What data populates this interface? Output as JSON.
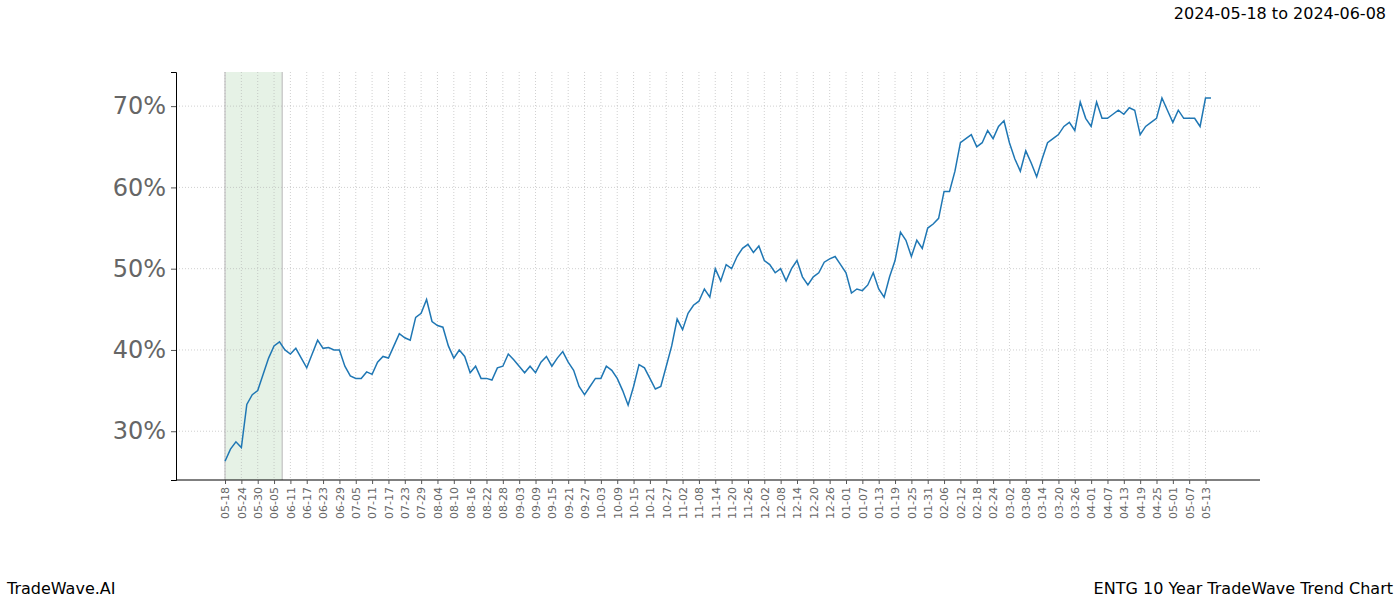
{
  "chart_data": {
    "type": "line",
    "title": "ENTG 10 Year TradeWave Trend Chart",
    "subtitle": "2024-05-18 to 2024-06-08",
    "annotations": [
      "TradeWave.AI"
    ],
    "categories": [
      "05-18",
      null,
      null,
      "05-24",
      null,
      null,
      "05-30",
      null,
      null,
      "06-05",
      null,
      null,
      "06-11",
      null,
      null,
      "06-17",
      null,
      null,
      "06-23",
      null,
      null,
      "06-29",
      null,
      null,
      "07-05",
      null,
      null,
      "07-11",
      null,
      null,
      "07-17",
      null,
      null,
      "07-23",
      null,
      null,
      "07-29",
      null,
      null,
      "08-04",
      null,
      null,
      "08-10",
      null,
      null,
      "08-16",
      null,
      null,
      "08-22",
      null,
      null,
      "08-28",
      null,
      null,
      "09-03",
      null,
      null,
      "09-09",
      null,
      null,
      "09-15",
      null,
      null,
      "09-21",
      null,
      null,
      "09-27",
      null,
      null,
      "10-03",
      null,
      null,
      "10-09",
      null,
      null,
      "10-15",
      null,
      null,
      "10-21",
      null,
      null,
      "10-27",
      null,
      null,
      "11-02",
      null,
      null,
      "11-08",
      null,
      null,
      "11-14",
      null,
      null,
      "11-20",
      null,
      null,
      "11-26",
      null,
      null,
      "12-02",
      null,
      null,
      "12-08",
      null,
      null,
      "12-14",
      null,
      null,
      "12-20",
      null,
      null,
      "12-26",
      null,
      null,
      "01-01",
      null,
      null,
      "01-07",
      null,
      null,
      "01-13",
      null,
      null,
      "01-19",
      null,
      null,
      "01-25",
      null,
      null,
      "01-31",
      null,
      null,
      "02-06",
      null,
      null,
      "02-12",
      null,
      null,
      "02-18",
      null,
      null,
      "02-24",
      null,
      null,
      "03-02",
      null,
      null,
      "03-08",
      null,
      null,
      "03-14",
      null,
      null,
      "03-20",
      null,
      null,
      "03-26",
      null,
      null,
      "04-01",
      null,
      null,
      "04-07",
      null,
      null,
      "04-13",
      null,
      null,
      "04-19",
      null,
      null,
      "04-25",
      null,
      null,
      "05-01",
      null,
      null,
      "05-07",
      null,
      null,
      "05-13",
      null
    ],
    "values": [
      26.3,
      27.8,
      28.7,
      28.0,
      33.3,
      34.5,
      35.0,
      37.0,
      39.0,
      40.5,
      41.0,
      40.0,
      39.5,
      40.2,
      39.0,
      37.8,
      39.5,
      41.2,
      40.2,
      40.3,
      40.0,
      40.0,
      38.0,
      36.8,
      36.5,
      36.5,
      37.3,
      37.0,
      38.5,
      39.2,
      39.0,
      40.5,
      42.0,
      41.5,
      41.2,
      44.0,
      44.5,
      46.2,
      43.5,
      43.0,
      42.8,
      40.5,
      39.0,
      40.0,
      39.2,
      37.2,
      38.0,
      36.5,
      36.5,
      36.3,
      37.8,
      38.0,
      39.5,
      38.8,
      38.0,
      37.2,
      38.0,
      37.2,
      38.5,
      39.2,
      38.0,
      39.0,
      39.8,
      38.5,
      37.5,
      35.5,
      34.5,
      35.5,
      36.5,
      36.5,
      38.0,
      37.5,
      36.5,
      35.0,
      33.2,
      35.5,
      38.2,
      37.8,
      36.5,
      35.2,
      35.5,
      38.0,
      40.5,
      43.8,
      42.5,
      44.5,
      45.5,
      46.0,
      47.5,
      46.5,
      50.0,
      48.5,
      50.5,
      50.0,
      51.5,
      52.5,
      53.0,
      52.0,
      52.8,
      51.0,
      50.5,
      49.5,
      50.0,
      48.5,
      50.0,
      51.0,
      49.0,
      48.0,
      49.0,
      49.5,
      50.8,
      51.2,
      51.5,
      50.5,
      49.5,
      47.0,
      47.5,
      47.3,
      48.0,
      49.5,
      47.5,
      46.5,
      49.0,
      51.0,
      54.5,
      53.5,
      51.5,
      53.5,
      52.5,
      55.0,
      55.5,
      56.2,
      59.5,
      59.5,
      62.0,
      65.5,
      66.0,
      66.5,
      65.0,
      65.5,
      67.0,
      66.0,
      67.5,
      68.2,
      65.5,
      63.5,
      62.0,
      64.5,
      63.0,
      61.3,
      63.5,
      65.5,
      66.0,
      66.5,
      67.5,
      68.0,
      67.0,
      70.5,
      68.5,
      67.5,
      70.5,
      68.5,
      68.5,
      69.0,
      69.5,
      69.0,
      69.8,
      69.5,
      66.5,
      67.5,
      68.0,
      68.5,
      71.0,
      69.5,
      68.0,
      69.5,
      68.5,
      68.5,
      68.5,
      67.5,
      71.0,
      71.0
    ],
    "color": "#1f77b4",
    "ylim": [
      24.0,
      74.2
    ],
    "yticks": [
      {
        "value": 30,
        "label": "30%"
      },
      {
        "value": 40,
        "label": "40%"
      },
      {
        "value": 50,
        "label": "50%"
      },
      {
        "value": 60,
        "label": "60%"
      },
      {
        "value": 70,
        "label": "70%"
      }
    ],
    "grid": true
  }
}
